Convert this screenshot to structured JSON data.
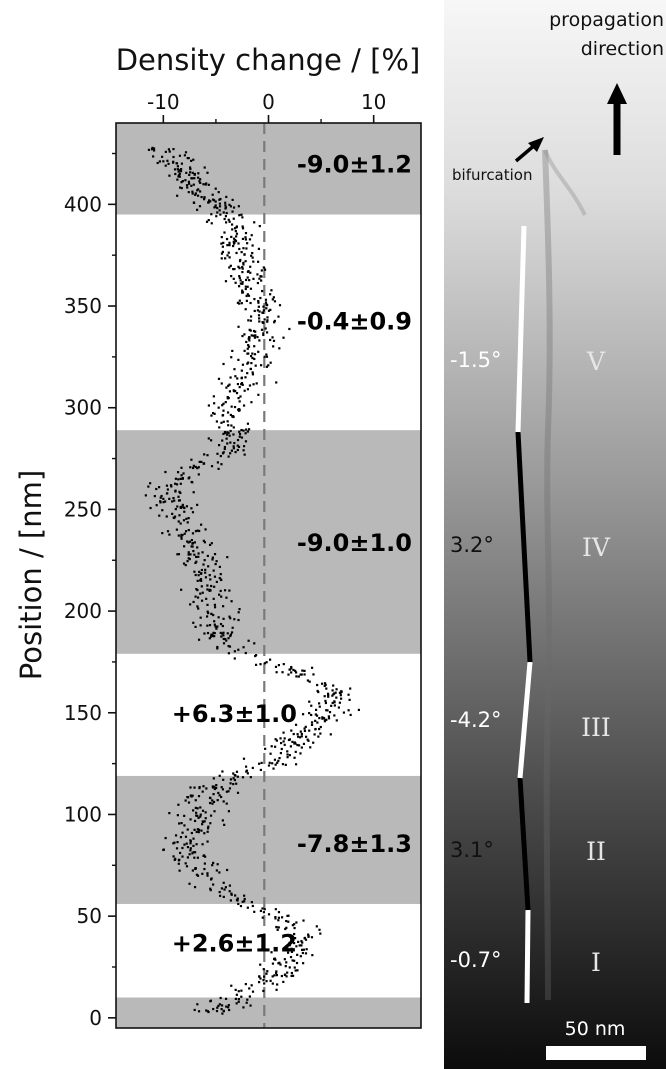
{
  "chart_data": {
    "type": "scatter",
    "title": "",
    "xlabel": "Density change / [%]",
    "ylabel": "Position / [nm]",
    "xlim": [
      -14.5,
      14.5
    ],
    "ylim": [
      -5,
      440
    ],
    "x_ticks": [
      -10,
      0,
      10
    ],
    "x_tick_labels": [
      "-10",
      "0",
      "10"
    ],
    "y_ticks": [
      0,
      50,
      100,
      150,
      200,
      250,
      300,
      350,
      400
    ],
    "y_tick_labels": [
      "0",
      "50",
      "100",
      "150",
      "200",
      "250",
      "300",
      "350",
      "400"
    ],
    "zero_line_x": -0.4,
    "bands": [
      {
        "y_from": -5,
        "y_to": 10,
        "shaded": true,
        "label": ""
      },
      {
        "y_from": 10,
        "y_to": 56,
        "shaded": false,
        "label": "+2.6±1.2",
        "label_x": -9.2,
        "label_y": 37
      },
      {
        "y_from": 56,
        "y_to": 119,
        "shaded": true,
        "label": "-7.8±1.3",
        "label_x": 2.7,
        "label_y": 86
      },
      {
        "y_from": 119,
        "y_to": 179,
        "shaded": false,
        "label": "+6.3±1.0",
        "label_x": -9.2,
        "label_y": 150
      },
      {
        "y_from": 179,
        "y_to": 289,
        "shaded": true,
        "label": "-9.0±1.0",
        "label_x": 2.7,
        "label_y": 234
      },
      {
        "y_from": 289,
        "y_to": 395,
        "shaded": false,
        "label": "-0.4±0.9",
        "label_x": 2.7,
        "label_y": 343
      },
      {
        "y_from": 395,
        "y_to": 440,
        "shaded": true,
        "label": "-9.0±1.2",
        "label_x": 2.7,
        "label_y": 420
      }
    ],
    "profile": [
      {
        "y": 2,
        "x": -5.0
      },
      {
        "y": 10,
        "x": -3.5
      },
      {
        "y": 20,
        "x": 0.5
      },
      {
        "y": 30,
        "x": 2.5
      },
      {
        "y": 40,
        "x": 3.0
      },
      {
        "y": 50,
        "x": 1.5
      },
      {
        "y": 56,
        "x": -2.0
      },
      {
        "y": 65,
        "x": -6.0
      },
      {
        "y": 75,
        "x": -7.0
      },
      {
        "y": 85,
        "x": -8.5
      },
      {
        "y": 95,
        "x": -6.5
      },
      {
        "y": 105,
        "x": -6.5
      },
      {
        "y": 115,
        "x": -4.5
      },
      {
        "y": 120,
        "x": -2.5
      },
      {
        "y": 130,
        "x": 1.5
      },
      {
        "y": 140,
        "x": 3.5
      },
      {
        "y": 150,
        "x": 5.5
      },
      {
        "y": 160,
        "x": 6.5
      },
      {
        "y": 168,
        "x": 4.0
      },
      {
        "y": 175,
        "x": -0.5
      },
      {
        "y": 180,
        "x": -3.5
      },
      {
        "y": 190,
        "x": -5.0
      },
      {
        "y": 205,
        "x": -5.5
      },
      {
        "y": 220,
        "x": -6.0
      },
      {
        "y": 235,
        "x": -7.5
      },
      {
        "y": 250,
        "x": -9.0
      },
      {
        "y": 260,
        "x": -9.5
      },
      {
        "y": 270,
        "x": -7.0
      },
      {
        "y": 280,
        "x": -3.5
      },
      {
        "y": 290,
        "x": -3.5
      },
      {
        "y": 300,
        "x": -4.0
      },
      {
        "y": 315,
        "x": -2.0
      },
      {
        "y": 330,
        "x": -0.8
      },
      {
        "y": 345,
        "x": -0.5
      },
      {
        "y": 360,
        "x": -1.5
      },
      {
        "y": 375,
        "x": -2.5
      },
      {
        "y": 390,
        "x": -3.0
      },
      {
        "y": 400,
        "x": -5.0
      },
      {
        "y": 410,
        "x": -7.0
      },
      {
        "y": 420,
        "x": -9.0
      },
      {
        "y": 428,
        "x": -10.0
      }
    ],
    "point_count": 1300,
    "point_spread": 1.6
  },
  "micrograph": {
    "propagation_label_line1": "propagation",
    "propagation_label_line2": "direction",
    "bifurcation_label": "bifurcation",
    "scale_bar_label": "50 nm",
    "segments": [
      {
        "roman": "I",
        "angle": "-0.7°",
        "color": "#ffffff",
        "angle_color": "#ffffff"
      },
      {
        "roman": "II",
        "angle": "3.1°",
        "color": "#000000",
        "angle_color": "#111111"
      },
      {
        "roman": "III",
        "angle": "-4.2°",
        "color": "#ffffff",
        "angle_color": "#ffffff"
      },
      {
        "roman": "IV",
        "angle": "3.2°",
        "color": "#000000",
        "angle_color": "#111111"
      },
      {
        "roman": "V",
        "angle": "-1.5°",
        "color": "#ffffff",
        "angle_color": "#ffffff"
      }
    ]
  }
}
